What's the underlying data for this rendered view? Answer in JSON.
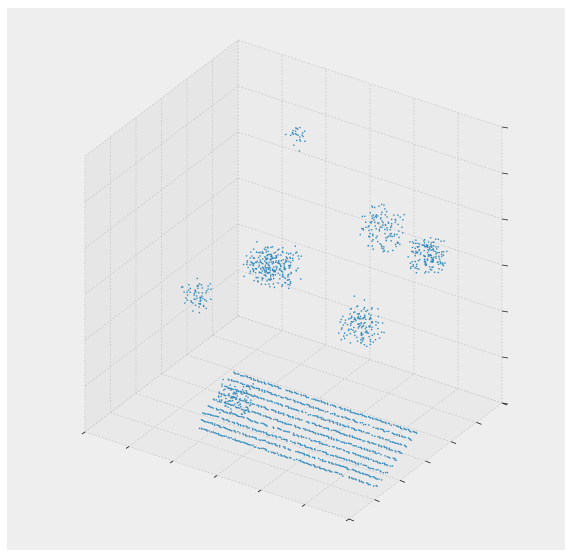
{
  "figure": {
    "background": "#ffffff",
    "axes_background": "#eeeeee",
    "pane_left_color": "#e6e6e6",
    "pane_right_color": "#ebebeb",
    "pane_floor_color": "#e9e9e9",
    "grid_color": "#c8c8c8",
    "tick_color": "#222222"
  },
  "chart_data": {
    "type": "scatter",
    "projection": "3d",
    "title": "",
    "xlabel": "",
    "ylabel": "",
    "zlabel": "",
    "tick_labels_shown": false,
    "grid": true,
    "legend": "none",
    "point_color": "#348abd",
    "xlim": [
      0,
      1
    ],
    "ylim": [
      0,
      1
    ],
    "zlim": [
      0,
      1
    ],
    "tick_count": {
      "x": 7,
      "y": 7,
      "z": 7
    },
    "series": [
      {
        "description_kind": "lidar point cloud",
        "scan_rings": [
          {
            "x": [
              0.3,
              0.98
            ],
            "y": 0.22,
            "z": 0.02
          },
          {
            "x": [
              0.28,
              0.97
            ],
            "y": 0.27,
            "z": 0.02
          },
          {
            "x": [
              0.26,
              0.96
            ],
            "y": 0.32,
            "z": 0.02
          },
          {
            "x": [
              0.25,
              0.95
            ],
            "y": 0.37,
            "z": 0.02
          },
          {
            "x": [
              0.24,
              0.94
            ],
            "y": 0.42,
            "z": 0.02
          },
          {
            "x": [
              0.23,
              0.93
            ],
            "y": 0.47,
            "z": 0.02
          },
          {
            "x": [
              0.22,
              0.92
            ],
            "y": 0.52,
            "z": 0.02
          },
          {
            "x": [
              0.21,
              0.91
            ],
            "y": 0.57,
            "z": 0.02
          },
          {
            "x": [
              0.2,
              0.9
            ],
            "y": 0.62,
            "z": 0.02
          }
        ],
        "clusters": [
          {
            "x": 0.22,
            "y": 0.78,
            "z": 0.35,
            "spread": 0.05,
            "count": 120
          },
          {
            "x": 0.36,
            "y": 0.64,
            "z": 0.45,
            "spread": 0.06,
            "count": 150
          },
          {
            "x": 0.6,
            "y": 0.9,
            "z": 0.55,
            "spread": 0.06,
            "count": 120
          },
          {
            "x": 0.86,
            "y": 0.75,
            "z": 0.6,
            "spread": 0.05,
            "count": 160
          },
          {
            "x": 0.78,
            "y": 0.45,
            "z": 0.45,
            "spread": 0.06,
            "count": 140
          },
          {
            "x": 0.1,
            "y": 0.55,
            "z": 0.3,
            "spread": 0.04,
            "count": 60
          },
          {
            "x": 0.35,
            "y": 0.38,
            "z": 0.08,
            "spread": 0.05,
            "count": 90
          },
          {
            "x": 0.25,
            "y": 0.95,
            "z": 0.75,
            "spread": 0.03,
            "count": 25
          }
        ]
      }
    ]
  }
}
